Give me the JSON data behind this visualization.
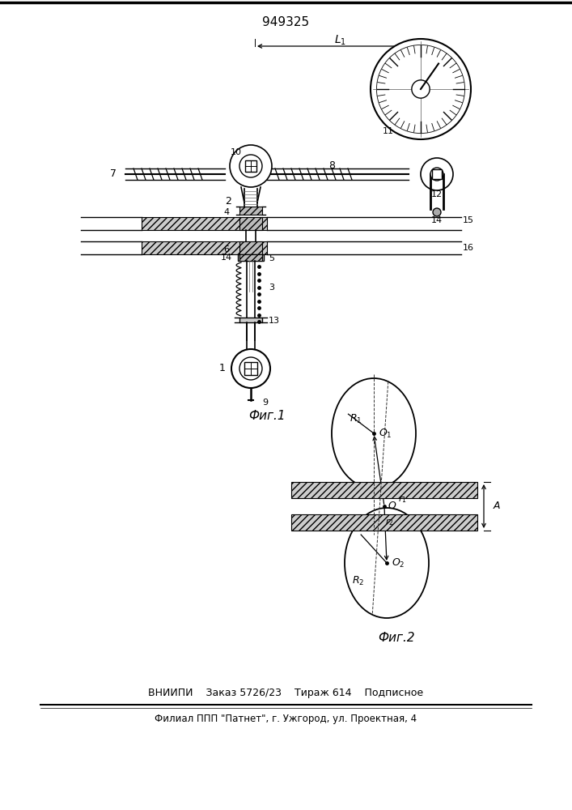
{
  "patent_number": "949325",
  "fig1_caption": "Фиг.1",
  "fig2_caption": "Фиг.2",
  "footer_line1": "ВНИИПИ    Заказ 5726/23    Тираж 614    Подписное",
  "footer_line2": "Филиал ППП \"Патнет\", г. Ужгород, ул. Проектная, 4",
  "bg_color": "#ffffff"
}
